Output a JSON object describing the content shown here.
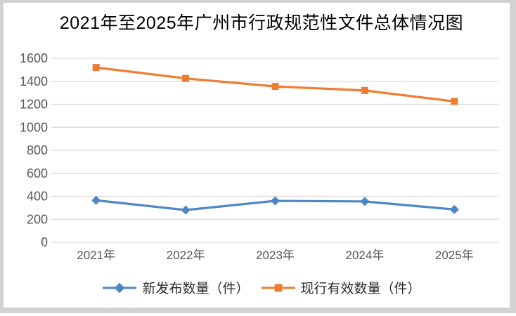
{
  "frame": {
    "border_color": "#d2d2d2",
    "background_color": "#ffffff"
  },
  "chart_data": {
    "type": "line",
    "title": "2021年至2025年广州市行政规范性文件总体情况图",
    "categories": [
      "2021年",
      "2022年",
      "2023年",
      "2024年",
      "2025年"
    ],
    "series": [
      {
        "name": "新发布数量（件）",
        "color": "#4e87c6",
        "marker": "diamond",
        "values": [
          365,
          280,
          360,
          355,
          285
        ]
      },
      {
        "name": "现行有效数量（件）",
        "color": "#ed7d31",
        "marker": "square",
        "values": [
          1520,
          1425,
          1355,
          1320,
          1225
        ]
      }
    ],
    "xlabel": "",
    "ylabel": "",
    "ylim": [
      0,
      1600
    ],
    "ytick_step": 200,
    "yticks": [
      0,
      200,
      400,
      600,
      800,
      1000,
      1200,
      1400,
      1600
    ],
    "grid": "horizontal-only",
    "gridline_color": "#dadada",
    "tick_label_color": "#595959",
    "legend_position": "bottom",
    "legend_text_color": "#2b2b2b"
  }
}
